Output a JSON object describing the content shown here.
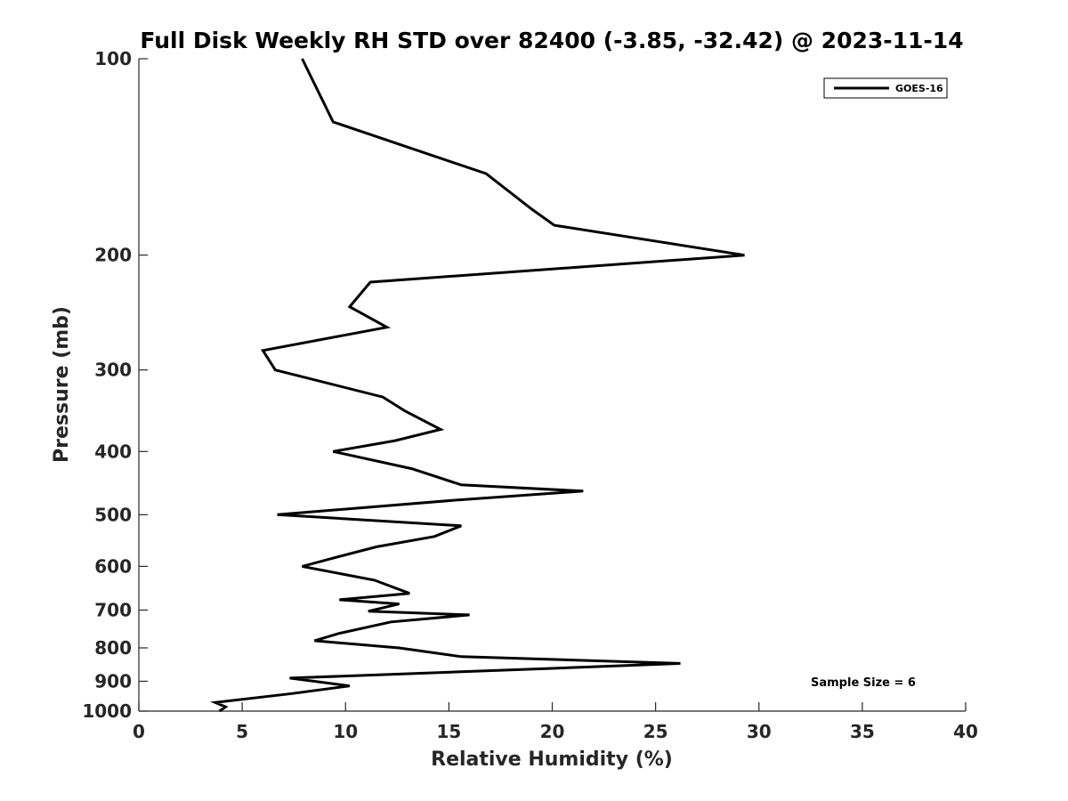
{
  "chart_data": {
    "type": "line",
    "title": "Full Disk Weekly RH STD over 82400 (-3.85, -32.42) @ 2023-11-14",
    "xlabel": "Relative Humidity (%)",
    "ylabel": "Pressure (mb)",
    "xlim": [
      0,
      40
    ],
    "ylim": [
      1000,
      100
    ],
    "yscale": "log",
    "yreversed": true,
    "xticks": [
      0,
      5,
      10,
      15,
      20,
      25,
      30,
      35,
      40
    ],
    "xtick_labels": [
      "0",
      "5",
      "10",
      "15",
      "20",
      "25",
      "30",
      "35",
      "40"
    ],
    "yticks": [
      100,
      200,
      300,
      400,
      500,
      600,
      700,
      800,
      900,
      1000
    ],
    "ytick_labels": [
      "100",
      "200",
      "300",
      "400",
      "500",
      "600",
      "700",
      "800",
      "900",
      "1000"
    ],
    "grid": false,
    "legend_position": "top-right",
    "series": [
      {
        "name": "GOES-16",
        "color": "#000000",
        "points": [
          [
            7.9,
            100
          ],
          [
            9.4,
            125
          ],
          [
            16.8,
            150
          ],
          [
            19.0,
            170
          ],
          [
            20.1,
            180
          ],
          [
            29.3,
            200
          ],
          [
            11.2,
            220
          ],
          [
            10.2,
            240
          ],
          [
            12.0,
            258
          ],
          [
            6.0,
            280
          ],
          [
            6.6,
            300
          ],
          [
            11.8,
            330
          ],
          [
            12.9,
            347
          ],
          [
            14.6,
            370
          ],
          [
            12.4,
            385
          ],
          [
            9.4,
            400
          ],
          [
            13.2,
            425
          ],
          [
            15.6,
            450
          ],
          [
            21.5,
            460
          ],
          [
            15.3,
            475
          ],
          [
            6.7,
            500
          ],
          [
            15.6,
            520
          ],
          [
            14.3,
            540
          ],
          [
            11.5,
            560
          ],
          [
            9.2,
            585
          ],
          [
            7.9,
            600
          ],
          [
            11.4,
            630
          ],
          [
            13.1,
            660
          ],
          [
            9.7,
            675
          ],
          [
            12.6,
            685
          ],
          [
            11.1,
            703
          ],
          [
            16.0,
            712
          ],
          [
            12.2,
            730
          ],
          [
            9.7,
            760
          ],
          [
            8.5,
            780
          ],
          [
            12.6,
            800
          ],
          [
            15.6,
            825
          ],
          [
            26.2,
            845
          ],
          [
            20.0,
            860
          ],
          [
            7.3,
            890
          ],
          [
            10.2,
            915
          ],
          [
            7.4,
            940
          ],
          [
            3.7,
            970
          ],
          [
            4.2,
            985
          ],
          [
            3.9,
            1000
          ]
        ]
      }
    ],
    "annotations": [
      "Sample Size = 6"
    ]
  }
}
